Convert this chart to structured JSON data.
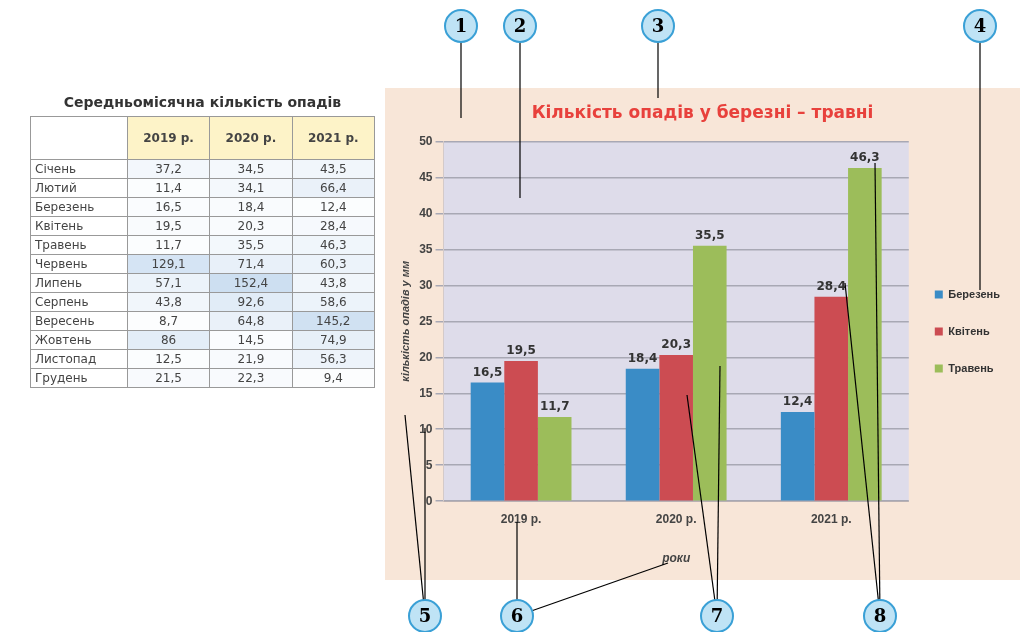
{
  "chart_data": [
    {
      "type": "heatmap",
      "title": "Середньомісячна кількість опадів",
      "categories": [
        "2019 р.",
        "2020 р.",
        "2021 р."
      ],
      "y_categories": [
        "Січень",
        "Лютий",
        "Березень",
        "Квітень",
        "Травень",
        "Червень",
        "Липень",
        "Серпень",
        "Вересень",
        "Жовтень",
        "Листопад",
        "Грудень"
      ],
      "cells": [
        [
          37.2,
          34.5,
          43.5
        ],
        [
          11.4,
          34.1,
          66.4
        ],
        [
          16.5,
          18.4,
          12.4
        ],
        [
          19.5,
          20.3,
          28.4
        ],
        [
          11.7,
          35.5,
          46.3
        ],
        [
          129.1,
          71.4,
          60.3
        ],
        [
          57.1,
          152.4,
          43.8
        ],
        [
          43.8,
          92.6,
          58.6
        ],
        [
          8.7,
          64.8,
          145.2
        ],
        [
          86,
          14.5,
          74.9
        ],
        [
          12.5,
          21.9,
          56.3
        ],
        [
          21.5,
          22.3,
          9.4
        ]
      ],
      "cell_labels": [
        [
          "37,2",
          "34,5",
          "43,5"
        ],
        [
          "11,4",
          "34,1",
          "66,4"
        ],
        [
          "16,5",
          "18,4",
          "12,4"
        ],
        [
          "19,5",
          "20,3",
          "28,4"
        ],
        [
          "11,7",
          "35,5",
          "46,3"
        ],
        [
          "129,1",
          "71,4",
          "60,3"
        ],
        [
          "57,1",
          "152,4",
          "43,8"
        ],
        [
          "43,8",
          "92,6",
          "58,6"
        ],
        [
          "8,7",
          "64,8",
          "145,2"
        ],
        [
          "86",
          "14,5",
          "74,9"
        ],
        [
          "12,5",
          "21,9",
          "56,3"
        ],
        [
          "21,5",
          "22,3",
          "9,4"
        ]
      ]
    },
    {
      "type": "bar",
      "title": "Кількість опадів у березні – травні",
      "xlabel": "роки",
      "ylabel": "кількість опадів у мм",
      "categories": [
        "2019 р.",
        "2020 р.",
        "2021 р."
      ],
      "series": [
        {
          "name": "Березень",
          "color": "#3a8cc6",
          "values": [
            16.5,
            18.4,
            12.4
          ],
          "value_labels": [
            "16,5",
            "18,4",
            "12,4"
          ]
        },
        {
          "name": "Квітень",
          "color": "#cc4c52",
          "values": [
            19.5,
            20.3,
            28.4
          ],
          "value_labels": [
            "19,5",
            "20,3",
            "28,4"
          ]
        },
        {
          "name": "Травень",
          "color": "#9cbd5a",
          "values": [
            11.7,
            35.5,
            46.3
          ],
          "value_labels": [
            "11,7",
            "35,5",
            "46,3"
          ]
        }
      ],
      "ylim": [
        0,
        50
      ],
      "yticks": [
        0,
        5,
        10,
        15,
        20,
        25,
        30,
        35,
        40,
        45,
        50
      ],
      "grid": "y",
      "legend": "right",
      "annotations": [
        "1",
        "2",
        "3",
        "4",
        "5",
        "6",
        "7",
        "8"
      ]
    }
  ]
}
